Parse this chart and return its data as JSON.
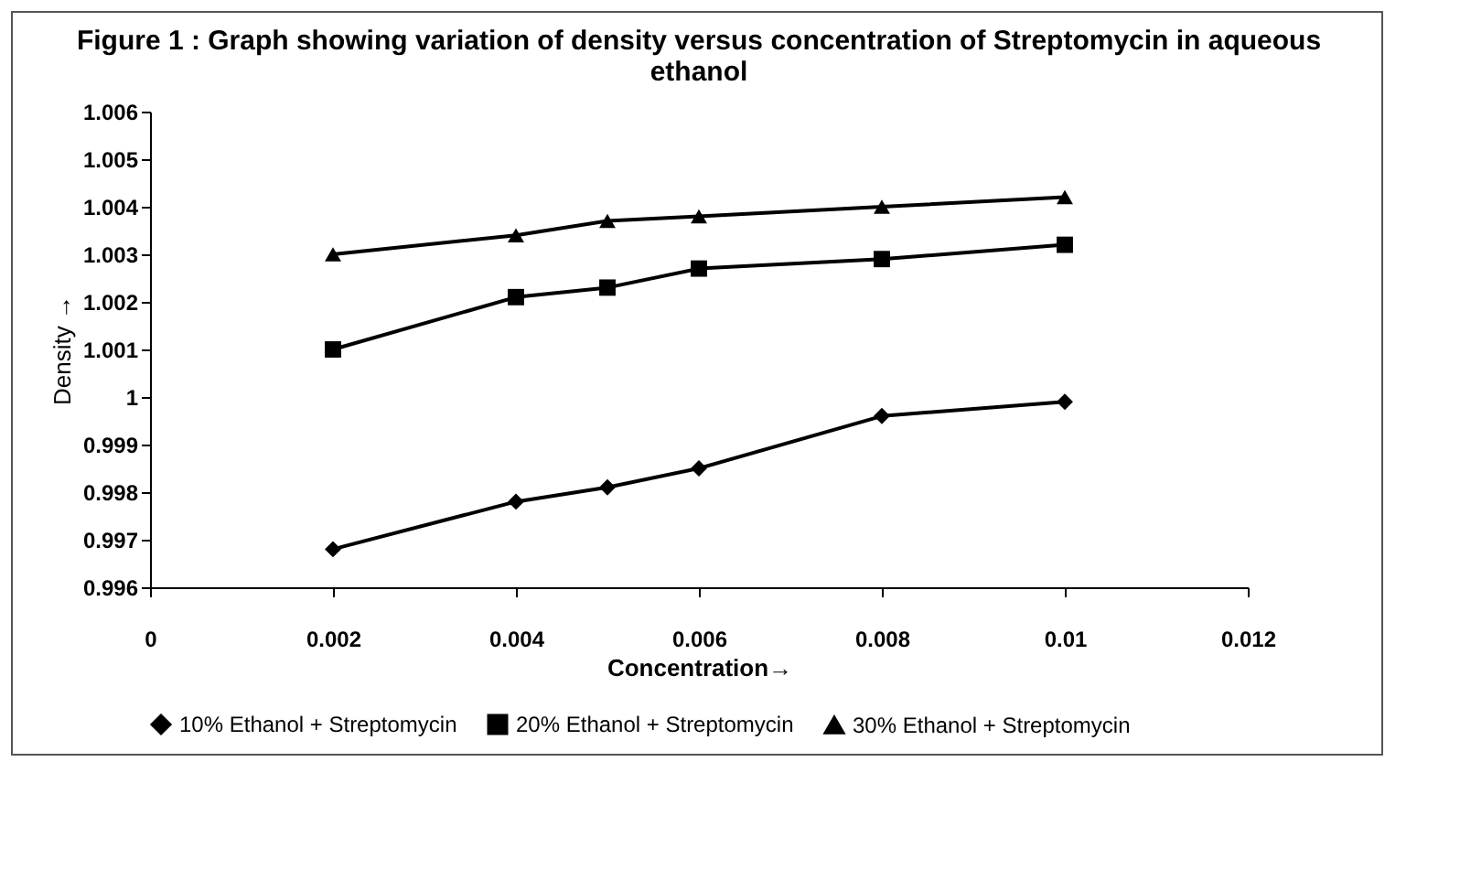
{
  "chart_data": {
    "type": "line",
    "title": "Figure 1 : Graph showing variation of density versus concentration of  Streptomycin in aqueous ethanol",
    "xlabel": "Concentration→",
    "ylabel": "Density →",
    "x": [
      0.002,
      0.004,
      0.005,
      0.006,
      0.008,
      0.01
    ],
    "series": [
      {
        "name": "10% Ethanol + Streptomycin",
        "color": "#000000",
        "marker": "diamond",
        "values": [
          0.9968,
          0.9978,
          0.9981,
          0.9985,
          0.9996,
          0.9999
        ]
      },
      {
        "name": "20% Ethanol + Streptomycin",
        "color": "#000000",
        "marker": "square",
        "values": [
          1.001,
          1.0021,
          1.0023,
          1.0027,
          1.0029,
          1.0032
        ]
      },
      {
        "name": "30% Ethanol + Streptomycin",
        "color": "#000000",
        "marker": "triangle",
        "values": [
          1.003,
          1.0034,
          1.0037,
          1.0038,
          1.004,
          1.0042
        ]
      }
    ],
    "xlim": [
      0,
      0.012
    ],
    "xticks": [
      0,
      0.002,
      0.004,
      0.006,
      0.008,
      0.01,
      0.012
    ],
    "ylim": [
      0.996,
      1.006
    ],
    "yticks": [
      0.996,
      0.997,
      0.998,
      0.999,
      1,
      1.001,
      1.002,
      1.003,
      1.004,
      1.005,
      1.006
    ],
    "legend": "bottom",
    "grid": false,
    "line_style": "solid"
  }
}
